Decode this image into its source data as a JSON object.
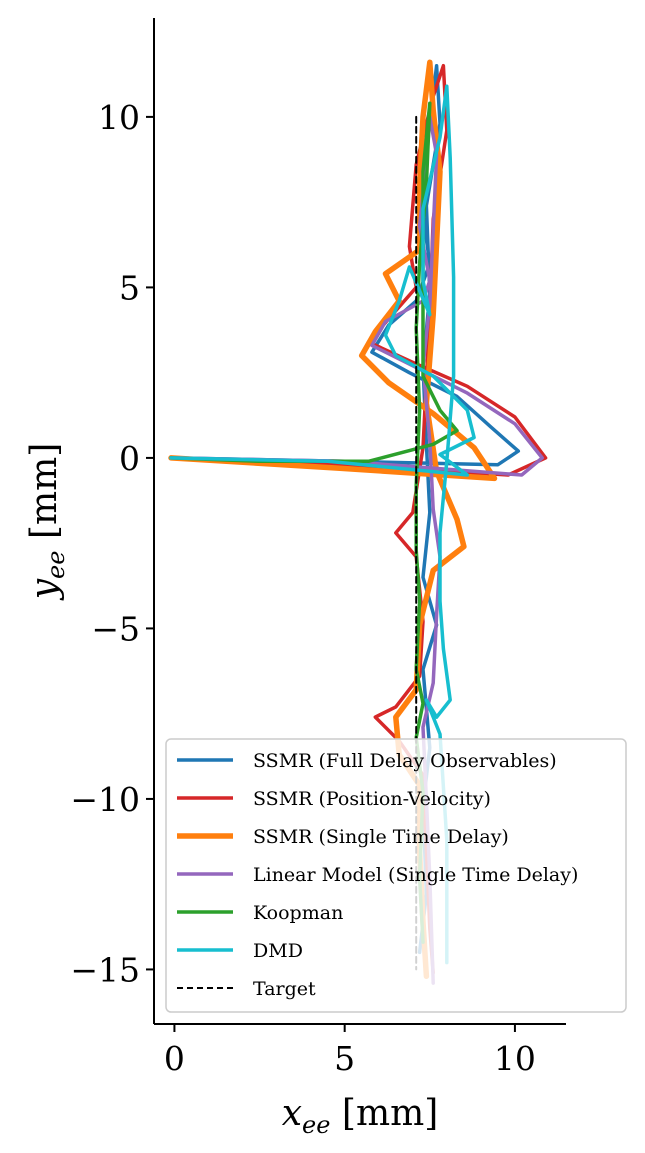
{
  "chart_data": {
    "type": "line",
    "title": "",
    "xlabel": "x_ee [mm]",
    "ylabel": "y_ee [mm]",
    "xlim": [
      -0.6,
      11.5
    ],
    "ylim": [
      -16.6,
      12.9
    ],
    "xticks": [
      0,
      5,
      10
    ],
    "yticks": [
      -15,
      -10,
      -5,
      0,
      5,
      10
    ],
    "xtick_labels": [
      "0",
      "5",
      "10"
    ],
    "ytick_labels": [
      "−15",
      "−10",
      "−5",
      "0",
      "5",
      "10"
    ],
    "grid": false,
    "legend_position": "lower-right",
    "series": [
      {
        "name": "SSMR (Full Delay Observables)",
        "color": "#1f77b4",
        "style": "solid",
        "width": 3.5,
        "points": [
          [
            -0.1,
            0
          ],
          [
            5,
            -0.1
          ],
          [
            9.5,
            -0.2
          ],
          [
            10.1,
            0.2
          ],
          [
            9.3,
            0.9
          ],
          [
            8.3,
            1.8
          ],
          [
            6.9,
            2.5
          ],
          [
            5.8,
            3.1
          ],
          [
            6.3,
            3.9
          ],
          [
            7.1,
            4.6
          ],
          [
            7.5,
            5.7
          ],
          [
            7.2,
            7.8
          ],
          [
            7.5,
            9.8
          ],
          [
            7.7,
            11.5
          ],
          [
            7.8,
            9.8
          ],
          [
            7.4,
            7.4
          ],
          [
            7.5,
            4.8
          ],
          [
            7.3,
            2.7
          ],
          [
            7.4,
            0.4
          ],
          [
            7.5,
            -1.6
          ],
          [
            7.3,
            -3.5
          ],
          [
            7.7,
            -4.9
          ],
          [
            7.3,
            -6.2
          ],
          [
            7.5,
            -8.5
          ],
          [
            7.3,
            -10.2
          ],
          [
            7.4,
            -12.8
          ],
          [
            7.2,
            -14.5
          ]
        ]
      },
      {
        "name": "SSMR (Position-Velocity)",
        "color": "#d62728",
        "style": "solid",
        "width": 3.5,
        "points": [
          [
            -0.1,
            0
          ],
          [
            5,
            -0.2
          ],
          [
            9.8,
            -0.5
          ],
          [
            10.9,
            0
          ],
          [
            10,
            1.2
          ],
          [
            8.6,
            2.1
          ],
          [
            7,
            2.8
          ],
          [
            5.7,
            3.4
          ],
          [
            6.4,
            4.2
          ],
          [
            7.1,
            5
          ],
          [
            6.9,
            6.2
          ],
          [
            7.1,
            8.6
          ],
          [
            7.6,
            10.6
          ],
          [
            7.9,
            11.5
          ],
          [
            8,
            9.6
          ],
          [
            7.6,
            7
          ],
          [
            7.5,
            4.3
          ],
          [
            7.4,
            2.3
          ],
          [
            7.3,
            0.3
          ],
          [
            7,
            -1.6
          ],
          [
            6.5,
            -2.2
          ],
          [
            7.1,
            -2.9
          ],
          [
            7.3,
            -4.8
          ],
          [
            7.2,
            -6.4
          ],
          [
            6.5,
            -7.3
          ],
          [
            5.9,
            -7.6
          ],
          [
            6.6,
            -8.3
          ],
          [
            7.3,
            -9.3
          ],
          [
            7.4,
            -11.5
          ],
          [
            7.5,
            -13.8
          ],
          [
            7.6,
            -15.1
          ]
        ]
      },
      {
        "name": "SSMR (Single Time Delay)",
        "color": "#ff7f0e",
        "style": "solid",
        "width": 5.5,
        "points": [
          [
            -0.1,
            0
          ],
          [
            4.8,
            -0.3
          ],
          [
            9.4,
            -0.6
          ],
          [
            8.8,
            0.3
          ],
          [
            7.6,
            1.3
          ],
          [
            6.3,
            2.2
          ],
          [
            5.5,
            3
          ],
          [
            5.9,
            3.7
          ],
          [
            6.6,
            4.6
          ],
          [
            6.2,
            5.4
          ],
          [
            7.2,
            6.1
          ],
          [
            7.2,
            8
          ],
          [
            7.3,
            10
          ],
          [
            7.5,
            11.6
          ],
          [
            7.6,
            10.2
          ],
          [
            7.8,
            8.4
          ],
          [
            7.7,
            6.3
          ],
          [
            7.6,
            4.2
          ],
          [
            7.4,
            1.6
          ],
          [
            7.7,
            -0.4
          ],
          [
            8.3,
            -1.8
          ],
          [
            8.5,
            -2.6
          ],
          [
            7.6,
            -3.3
          ],
          [
            7.2,
            -4.9
          ],
          [
            7.1,
            -6.8
          ],
          [
            6.5,
            -7.6
          ],
          [
            6.6,
            -8.7
          ],
          [
            7.2,
            -9.6
          ],
          [
            7.2,
            -11.5
          ],
          [
            7.3,
            -13.6
          ],
          [
            7.4,
            -15.2
          ]
        ]
      },
      {
        "name": "Linear Model (Single Time Delay)",
        "color": "#9467bd",
        "style": "solid",
        "width": 3.5,
        "points": [
          [
            -0.1,
            0
          ],
          [
            5,
            -0.1
          ],
          [
            10.2,
            -0.5
          ],
          [
            10.8,
            0
          ],
          [
            10,
            1
          ],
          [
            8.6,
            1.9
          ],
          [
            7.2,
            2.6
          ],
          [
            5.8,
            3.3
          ],
          [
            6.2,
            4
          ],
          [
            7.3,
            4.6
          ],
          [
            7.5,
            5.2
          ],
          [
            7.2,
            6.8
          ],
          [
            7.4,
            8.6
          ],
          [
            7.5,
            10
          ],
          [
            7.7,
            8.9
          ],
          [
            7.6,
            6.7
          ],
          [
            7.5,
            4.5
          ],
          [
            7.3,
            2.7
          ],
          [
            7.5,
            0.5
          ],
          [
            7.6,
            -1.5
          ],
          [
            7.8,
            -2.9
          ],
          [
            7.7,
            -4.6
          ],
          [
            7.6,
            -6.6
          ],
          [
            7.3,
            -7.9
          ],
          [
            7.4,
            -10
          ],
          [
            7.5,
            -12.3
          ],
          [
            7.6,
            -15.4
          ]
        ]
      },
      {
        "name": "Koopman",
        "color": "#2ca02c",
        "style": "solid",
        "width": 3.5,
        "points": [
          [
            -0.1,
            0
          ],
          [
            2.5,
            -0.1
          ],
          [
            5.7,
            -0.1
          ],
          [
            7.6,
            0.4
          ],
          [
            8.3,
            0.8
          ],
          [
            7.8,
            1.4
          ],
          [
            7.3,
            2.4
          ],
          [
            7.3,
            4.4
          ],
          [
            7.3,
            6.2
          ],
          [
            7.3,
            8.4
          ],
          [
            7.5,
            10.4
          ],
          [
            7.4,
            8
          ],
          [
            7.2,
            5.7
          ],
          [
            7.1,
            3.8
          ],
          [
            7.2,
            1.4
          ],
          [
            7.1,
            -0.8
          ],
          [
            7.1,
            -2.7
          ],
          [
            7.2,
            -4.2
          ],
          [
            7.1,
            -6.2
          ],
          [
            7.3,
            -7.2
          ],
          [
            7.1,
            -8.2
          ],
          [
            7.3,
            -9.8
          ],
          [
            7.2,
            -12.3
          ],
          [
            7.3,
            -14.2
          ]
        ]
      },
      {
        "name": "DMD",
        "color": "#17becf",
        "style": "solid",
        "width": 3.5,
        "points": [
          [
            -0.1,
            0
          ],
          [
            4.5,
            -0.1
          ],
          [
            8.6,
            -0.5
          ],
          [
            7.8,
            0.1
          ],
          [
            8.8,
            0.6
          ],
          [
            8.6,
            1.4
          ],
          [
            7.6,
            2.4
          ],
          [
            6.5,
            3
          ],
          [
            6.2,
            3.6
          ],
          [
            6.6,
            4.6
          ],
          [
            6.9,
            5.6
          ],
          [
            7.5,
            4.2
          ],
          [
            7.3,
            5.2
          ],
          [
            7.3,
            7.3
          ],
          [
            7.8,
            9.4
          ],
          [
            8,
            10.9
          ],
          [
            8.1,
            8.8
          ],
          [
            8.2,
            5.3
          ],
          [
            8.2,
            2.4
          ],
          [
            8,
            -0.1
          ],
          [
            7.8,
            -2.2
          ],
          [
            7.8,
            -4.2
          ],
          [
            7.9,
            -5.6
          ],
          [
            8.1,
            -7.1
          ],
          [
            7.7,
            -7.6
          ],
          [
            7.4,
            -7.1
          ],
          [
            7.8,
            -8.1
          ],
          [
            8,
            -11.2
          ],
          [
            8,
            -14.8
          ]
        ]
      },
      {
        "name": "Target",
        "color": "#000000",
        "style": "dashed",
        "width": 2,
        "points": [
          [
            7.1,
            10
          ],
          [
            7.1,
            -15
          ]
        ]
      }
    ]
  },
  "legend": {
    "items": [
      {
        "label": "SSMR (Full Delay Observables)",
        "color": "#1f77b4",
        "style": "solid"
      },
      {
        "label": "SSMR (Position-Velocity)",
        "color": "#d62728",
        "style": "solid"
      },
      {
        "label": "SSMR (Single Time Delay)",
        "color": "#ff7f0e",
        "style": "solid"
      },
      {
        "label": "Linear Model (Single Time Delay)",
        "color": "#9467bd",
        "style": "solid"
      },
      {
        "label": "Koopman",
        "color": "#2ca02c",
        "style": "solid"
      },
      {
        "label": "DMD",
        "color": "#17becf",
        "style": "solid"
      },
      {
        "label": "Target",
        "color": "#000000",
        "style": "dashed"
      }
    ]
  }
}
